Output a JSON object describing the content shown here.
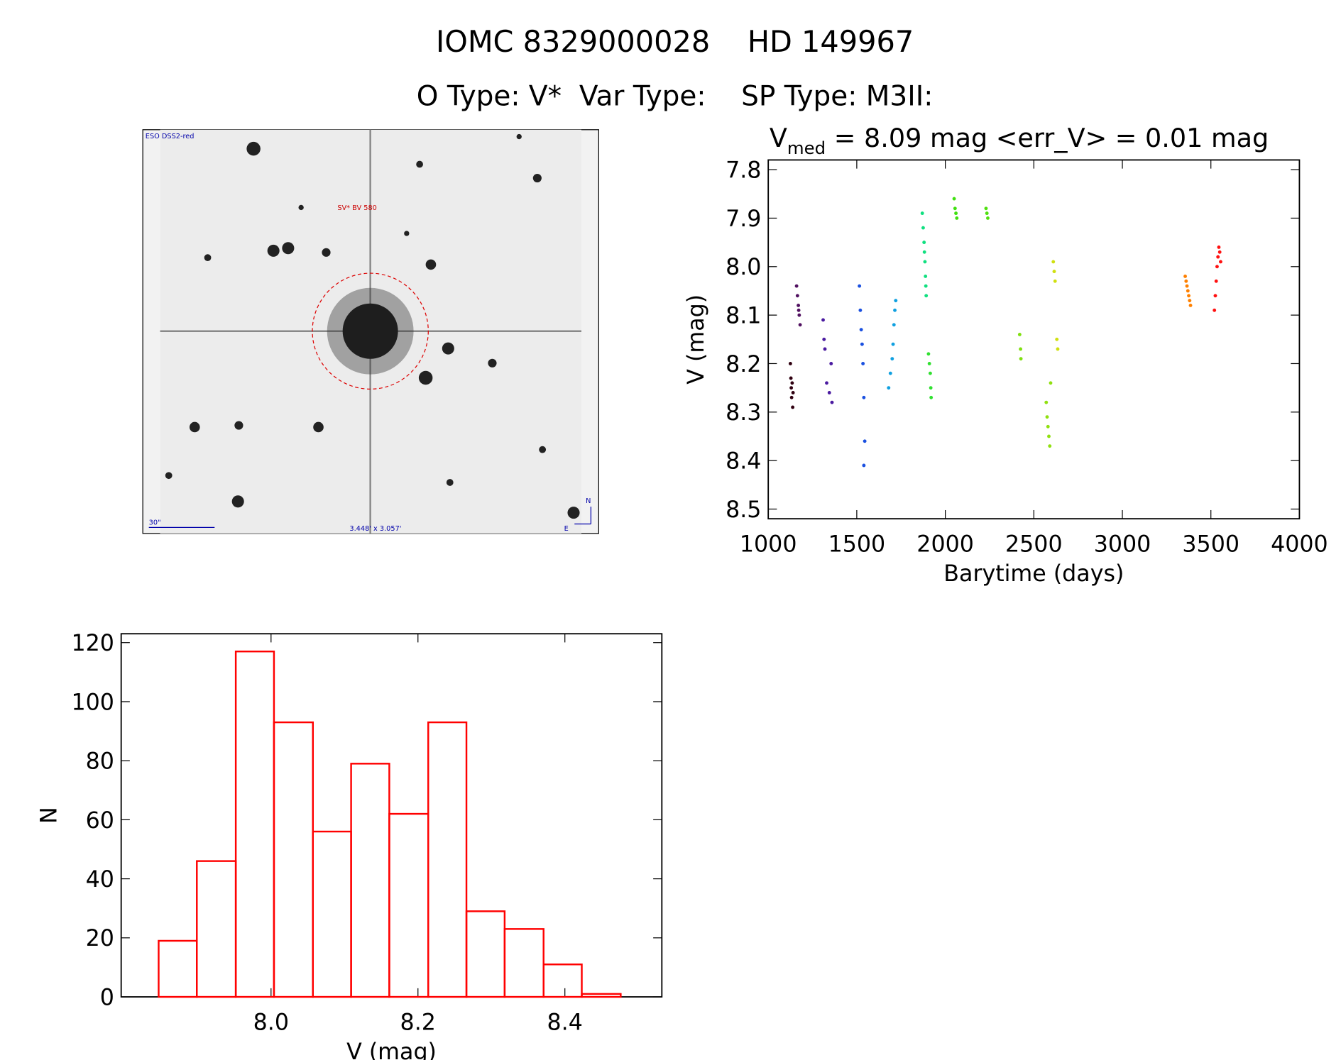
{
  "header": {
    "title": "IOMC 8329000028    HD 149967",
    "subtitle": "O Type: V*  Var Type:    SP Type: M3II:"
  },
  "image": {
    "survey": "ESO DSS2-red",
    "target": "SV* BV 580",
    "scale": "30\"",
    "size": "3.448' x 3.057'",
    "north": "N",
    "east": "E"
  },
  "chart_data": [
    {
      "type": "scatter",
      "title": "V",
      "title_subscript": "med",
      "title_rest": " = 8.09 mag <err_V> = 0.01 mag",
      "xlabel": "Barytime (days)",
      "ylabel": "V (mag)",
      "xlim": [
        1000,
        4000
      ],
      "xticks": [
        1000,
        1500,
        2000,
        2500,
        3000,
        3500,
        4000
      ],
      "ylim": [
        7.78,
        8.52
      ],
      "y_inverted": true,
      "yticks": [
        7.8,
        7.9,
        {
          "value": 8.0,
          "label": "8.0"
        },
        8.1,
        8.2,
        8.3,
        8.4,
        8.5
      ],
      "series": [
        {
          "color": "#300010",
          "x": [
            1125,
            1128,
            1130,
            1132,
            1135,
            1138,
            1140
          ],
          "values": [
            8.2,
            8.23,
            8.25,
            8.27,
            8.24,
            8.29,
            8.26
          ]
        },
        {
          "color": "#501060",
          "x": [
            1160,
            1165,
            1170,
            1172,
            1175,
            1180
          ],
          "values": [
            8.04,
            8.06,
            8.08,
            8.09,
            8.1,
            8.12
          ]
        },
        {
          "color": "#4a1aa0",
          "x": [
            1310,
            1315,
            1320,
            1330,
            1345,
            1355,
            1360
          ],
          "values": [
            8.11,
            8.15,
            8.17,
            8.24,
            8.26,
            8.2,
            8.28
          ]
        },
        {
          "color": "#1a50e0",
          "x": [
            1515,
            1520,
            1525,
            1530,
            1535,
            1540,
            1545,
            1540
          ],
          "values": [
            8.04,
            8.09,
            8.13,
            8.16,
            8.2,
            8.27,
            8.36,
            8.41
          ]
        },
        {
          "color": "#10a0e0",
          "x": [
            1680,
            1690,
            1700,
            1705,
            1710,
            1715,
            1720
          ],
          "values": [
            8.25,
            8.22,
            8.19,
            8.16,
            8.12,
            8.09,
            8.07
          ]
        },
        {
          "color": "#10e080",
          "x": [
            1870,
            1875,
            1880,
            1882,
            1885,
            1888,
            1890,
            1892
          ],
          "values": [
            7.89,
            7.92,
            7.95,
            7.97,
            7.99,
            8.02,
            8.04,
            8.06
          ]
        },
        {
          "color": "#30e030",
          "x": [
            1905,
            1910,
            1915,
            1918,
            1920
          ],
          "values": [
            8.18,
            8.2,
            8.22,
            8.25,
            8.27
          ]
        },
        {
          "color": "#40e010",
          "x": [
            2050,
            2055,
            2060,
            2065
          ],
          "values": [
            7.86,
            7.88,
            7.89,
            7.9
          ]
        },
        {
          "color": "#50e010",
          "x": [
            2230,
            2235,
            2240
          ],
          "values": [
            7.88,
            7.89,
            7.9
          ]
        },
        {
          "color": "#80e010",
          "x": [
            2420,
            2425,
            2427
          ],
          "values": [
            8.14,
            8.17,
            8.19
          ]
        },
        {
          "color": "#90e010",
          "x": [
            2570,
            2575,
            2580,
            2585,
            2590,
            2595
          ],
          "values": [
            8.28,
            8.31,
            8.33,
            8.35,
            8.37,
            8.24
          ]
        },
        {
          "color": "#d0e010",
          "x": [
            2610,
            2615,
            2620,
            2630,
            2635
          ],
          "values": [
            7.99,
            8.01,
            8.03,
            8.15,
            8.17
          ]
        },
        {
          "color": "#ff8000",
          "x": [
            3355,
            3360,
            3365,
            3370,
            3375,
            3380,
            3385
          ],
          "values": [
            8.02,
            8.03,
            8.04,
            8.05,
            8.06,
            8.07,
            8.08
          ]
        },
        {
          "color": "#ff1010",
          "x": [
            3520,
            3525,
            3530,
            3535,
            3540,
            3545,
            3550,
            3555
          ],
          "values": [
            8.09,
            8.06,
            8.03,
            8.0,
            7.98,
            7.96,
            7.97,
            7.99
          ]
        }
      ]
    },
    {
      "type": "histogram",
      "xlabel": "V (mag)",
      "ylabel": "N",
      "color": "#ff0000",
      "bins": [
        7.847,
        7.899,
        7.952,
        8.004,
        8.057,
        8.109,
        8.161,
        8.214,
        8.266,
        8.318,
        8.371,
        8.423,
        8.476
      ],
      "values": [
        19,
        46,
        117,
        93,
        56,
        79,
        62,
        93,
        29,
        23,
        11,
        1
      ],
      "xlim": [
        7.796,
        8.532
      ],
      "xticks": [
        {
          "value": 8.0,
          "label": "8.0"
        },
        8.2,
        8.4
      ],
      "ylim": [
        0,
        123
      ],
      "yticks": [
        0,
        20,
        40,
        60,
        80,
        100,
        120
      ]
    }
  ]
}
